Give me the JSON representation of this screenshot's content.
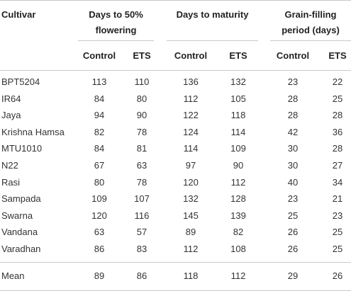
{
  "table": {
    "header": {
      "cultivar": "Cultivar",
      "group1_line1": "Days to 50%",
      "group1_line2": "flowering",
      "group2": "Days to maturity",
      "group3_line1": "Grain-filling",
      "group3_line2": "period (days)",
      "sub": [
        "Control",
        "ETS",
        "Control",
        "ETS",
        "Control",
        "ETS"
      ]
    },
    "rows": [
      {
        "name": "BPT5204",
        "values": [
          "113",
          "110",
          "136",
          "132",
          "23",
          "22"
        ]
      },
      {
        "name": "IR64",
        "values": [
          "84",
          "80",
          "112",
          "105",
          "28",
          "25"
        ]
      },
      {
        "name": "Jaya",
        "values": [
          "94",
          "90",
          "122",
          "118",
          "28",
          "28"
        ]
      },
      {
        "name": "Krishna Hamsa",
        "values": [
          "82",
          "78",
          "124",
          "114",
          "42",
          "36"
        ]
      },
      {
        "name": "MTU1010",
        "values": [
          "84",
          "81",
          "114",
          "109",
          "30",
          "28"
        ]
      },
      {
        "name": "N22",
        "values": [
          "67",
          "63",
          "97",
          "90",
          "30",
          "27"
        ]
      },
      {
        "name": "Rasi",
        "values": [
          "80",
          "78",
          "120",
          "112",
          "40",
          "34"
        ]
      },
      {
        "name": "Sampada",
        "values": [
          "109",
          "107",
          "132",
          "128",
          "23",
          "21"
        ]
      },
      {
        "name": "Swarna",
        "values": [
          "120",
          "116",
          "145",
          "139",
          "25",
          "23"
        ]
      },
      {
        "name": "Vandana",
        "values": [
          "63",
          "57",
          "89",
          "82",
          "26",
          "25"
        ]
      },
      {
        "name": "Varadhan",
        "values": [
          "86",
          "83",
          "112",
          "108",
          "26",
          "25"
        ]
      }
    ],
    "mean": {
      "name": "Mean",
      "values": [
        "89",
        "86",
        "118",
        "112",
        "29",
        "26"
      ]
    }
  }
}
